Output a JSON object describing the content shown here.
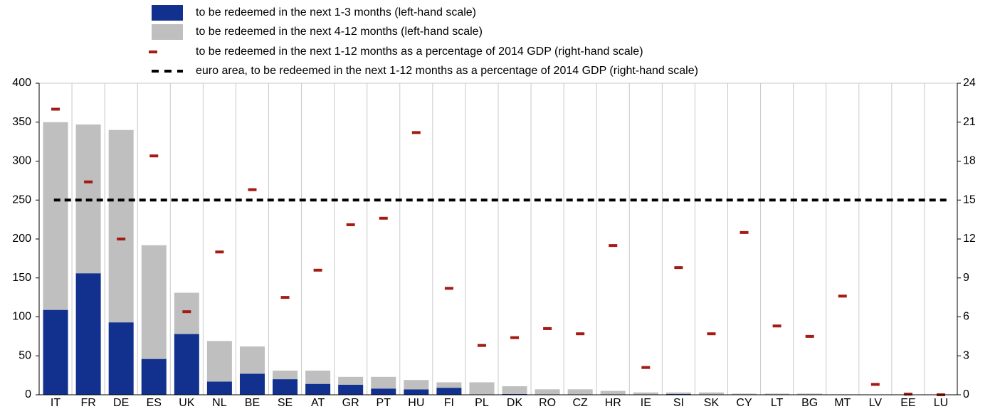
{
  "chart_data": {
    "type": "bar",
    "categories": [
      "IT",
      "FR",
      "DE",
      "ES",
      "UK",
      "NL",
      "BE",
      "SE",
      "AT",
      "GR",
      "PT",
      "HU",
      "FI",
      "PL",
      "DK",
      "RO",
      "CZ",
      "HR",
      "IE",
      "SI",
      "SK",
      "CY",
      "LT",
      "BG",
      "MT",
      "LV",
      "EE",
      "LU"
    ],
    "series": [
      {
        "name": "to be redeemed in the next 1-3 months (left-hand scale)",
        "color": "#12318f",
        "stack": "a",
        "values": [
          109,
          156,
          93,
          46,
          78,
          17,
          27,
          20,
          14,
          13,
          8,
          7,
          9,
          0.5,
          1,
          0.5,
          0.5,
          0.3,
          0.3,
          1,
          0.3,
          0.2,
          0.2,
          0.2,
          0.1,
          0.1,
          0,
          0
        ]
      },
      {
        "name": "to be redeemed in the next 4-12 months (left-hand scale)",
        "color": "#bfbfbf",
        "stack": "a",
        "values": [
          241,
          191,
          247,
          146,
          53,
          52,
          35,
          11,
          17,
          10,
          15,
          12,
          7,
          15.5,
          10,
          6.5,
          6.5,
          4.7,
          2.7,
          2,
          2.7,
          1.3,
          1.3,
          1.3,
          0.4,
          0.2,
          0.1,
          0
        ]
      },
      {
        "name": "to be redeemed in the next 1-12 months as a percentage of 2014 GDP (right-hand scale)",
        "color": "#a31b14",
        "axis": "y2",
        "marker": "dash",
        "values": [
          22,
          16.4,
          12,
          18.4,
          6.4,
          11,
          15.8,
          7.5,
          9.6,
          13.1,
          13.6,
          20.2,
          8.2,
          3.8,
          4.4,
          5.1,
          4.7,
          11.5,
          2.1,
          9.8,
          4.7,
          12.5,
          5.3,
          4.5,
          7.6,
          0.8,
          0.05,
          0
        ]
      }
    ],
    "reference_lines": [
      {
        "name": "euro area, to be redeemed in the next 1-12 months as a percentage of 2014 GDP (right-hand scale)",
        "value": 15,
        "axis": "y2",
        "color": "#000000",
        "dashed": true
      }
    ],
    "ylim": [
      0,
      400
    ],
    "yticks": [
      0,
      50,
      100,
      150,
      200,
      250,
      300,
      350,
      400
    ],
    "y2lim": [
      0,
      24
    ],
    "y2ticks": [
      0,
      3,
      6,
      9,
      12,
      15,
      18,
      21,
      24
    ],
    "grid": "vertical"
  }
}
